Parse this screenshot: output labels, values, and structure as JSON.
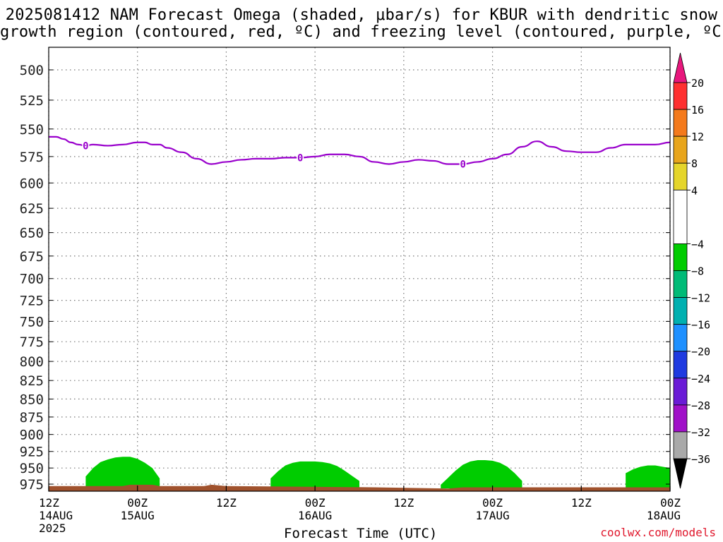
{
  "title_line1": "2025081412 NAM Forecast Omega (shaded, μbar/s) for KBUR with dendritic snow",
  "title_line2": "growth region (contoured, red, ºC) and freezing level (contoured, purple, ºC)",
  "credit": "coolwx.com/models",
  "chart_data": {
    "type": "heatmap",
    "title": "2025081412 NAM Forecast Omega (shaded, μbar/s) for KBUR with dendritic snow growth region (contoured, red, ºC) and freezing level (contoured, purple, ºC)",
    "xlabel": "Forecast Time (UTC)",
    "ylabel": "",
    "x_ticks": [
      {
        "hour": 0,
        "top": "12Z",
        "mid": "14AUG",
        "bot": "2025"
      },
      {
        "hour": 12,
        "top": "00Z",
        "mid": "15AUG",
        "bot": ""
      },
      {
        "hour": 24,
        "top": "12Z",
        "mid": "",
        "bot": ""
      },
      {
        "hour": 36,
        "top": "00Z",
        "mid": "16AUG",
        "bot": ""
      },
      {
        "hour": 48,
        "top": "12Z",
        "mid": "",
        "bot": ""
      },
      {
        "hour": 60,
        "top": "00Z",
        "mid": "17AUG",
        "bot": ""
      },
      {
        "hour": 72,
        "top": "12Z",
        "mid": "",
        "bot": ""
      },
      {
        "hour": 84,
        "top": "00Z",
        "mid": "18AUG",
        "bot": ""
      }
    ],
    "xlim": [
      0,
      84
    ],
    "y_ticks": [
      500,
      525,
      550,
      575,
      600,
      625,
      650,
      675,
      700,
      725,
      750,
      775,
      800,
      825,
      850,
      875,
      900,
      925,
      950,
      975
    ],
    "ylim": [
      475,
      990
    ],
    "y_scale": "log-pressure",
    "grid": true,
    "freezing_level": {
      "color": "#9900cc",
      "label": "0",
      "label_hours": [
        5,
        34,
        56
      ],
      "hours": [
        0,
        1,
        2,
        3,
        4,
        5,
        6,
        8,
        10,
        12,
        13,
        14,
        15,
        16,
        18,
        20,
        22,
        24,
        26,
        28,
        30,
        32,
        34,
        36,
        38,
        40,
        42,
        44,
        46,
        48,
        50,
        52,
        54,
        56,
        58,
        60,
        62,
        64,
        66,
        68,
        70,
        72,
        74,
        76,
        78,
        80,
        82,
        84
      ],
      "pressure": [
        557,
        557,
        559,
        562,
        564,
        565,
        564,
        565,
        564,
        562,
        562,
        564,
        564,
        567,
        571,
        577,
        582,
        580,
        578,
        577,
        577,
        576,
        576,
        575,
        573,
        573,
        575,
        580,
        582,
        580,
        578,
        579,
        582,
        582,
        580,
        577,
        573,
        566,
        561,
        566,
        570,
        571,
        571,
        567,
        564,
        564,
        564,
        562
      ]
    },
    "omega_regions": [
      {
        "bin": "-8 to -4",
        "color": "#00cc00",
        "hours": [
          5,
          6,
          7,
          8,
          9,
          10,
          11,
          12,
          13,
          14,
          15
        ],
        "top_pressure": [
          963,
          950,
          941,
          937,
          934,
          933,
          933,
          936,
          942,
          950,
          966
        ]
      },
      {
        "bin": "-8 to -4",
        "color": "#00cc00",
        "hours": [
          30,
          31,
          32,
          33,
          34,
          35,
          36,
          37,
          38,
          39,
          40,
          41,
          42
        ],
        "top_pressure": [
          966,
          955,
          946,
          942,
          940,
          940,
          940,
          941,
          943,
          947,
          954,
          962,
          970
        ]
      },
      {
        "bin": "-8 to -4",
        "color": "#00cc00",
        "hours": [
          53,
          54,
          55,
          56,
          57,
          58,
          59,
          60,
          61,
          62,
          63,
          64
        ],
        "top_pressure": [
          976,
          965,
          954,
          945,
          940,
          938,
          938,
          939,
          942,
          948,
          958,
          970
        ]
      },
      {
        "bin": "-8 to -4",
        "color": "#00cc00",
        "hours": [
          78,
          79,
          80,
          81,
          82,
          83,
          84
        ],
        "top_pressure": [
          958,
          952,
          948,
          946,
          946,
          948,
          950
        ]
      }
    ],
    "terrain": {
      "color": "#a0522d",
      "hours": [
        0,
        10,
        11,
        14,
        15,
        21,
        22,
        24,
        44,
        54,
        56,
        84
      ],
      "pressure": [
        978,
        978,
        976,
        976,
        978,
        978,
        976,
        978,
        980,
        982,
        980,
        980
      ]
    },
    "colorbar": {
      "label_values": [
        20,
        16,
        12,
        8,
        4,
        -4,
        -8,
        -12,
        -16,
        -20,
        -24,
        -28,
        -32,
        -36
      ],
      "bins": [
        {
          "lo": 16,
          "hi": 20,
          "color": "#ff3030"
        },
        {
          "lo": 12,
          "hi": 16,
          "color": "#f47a1c"
        },
        {
          "lo": 8,
          "hi": 12,
          "color": "#e8a51c"
        },
        {
          "lo": 4,
          "hi": 8,
          "color": "#e5d52b"
        },
        {
          "lo": -4,
          "hi": 4,
          "color": "#ffffff"
        },
        {
          "lo": -8,
          "hi": -4,
          "color": "#00cc00"
        },
        {
          "lo": -12,
          "hi": -8,
          "color": "#00bb77"
        },
        {
          "lo": -16,
          "hi": -12,
          "color": "#00b0b0"
        },
        {
          "lo": -20,
          "hi": -16,
          "color": "#1e90ff"
        },
        {
          "lo": -24,
          "hi": -20,
          "color": "#1f3ae0"
        },
        {
          "lo": -28,
          "hi": -24,
          "color": "#6a1bd6"
        },
        {
          "lo": -32,
          "hi": -28,
          "color": "#a010c8"
        },
        {
          "lo": -36,
          "hi": -32,
          "color": "#a9a9a9"
        }
      ],
      "over_color": "#e8177d",
      "under_color": "#000000"
    }
  }
}
